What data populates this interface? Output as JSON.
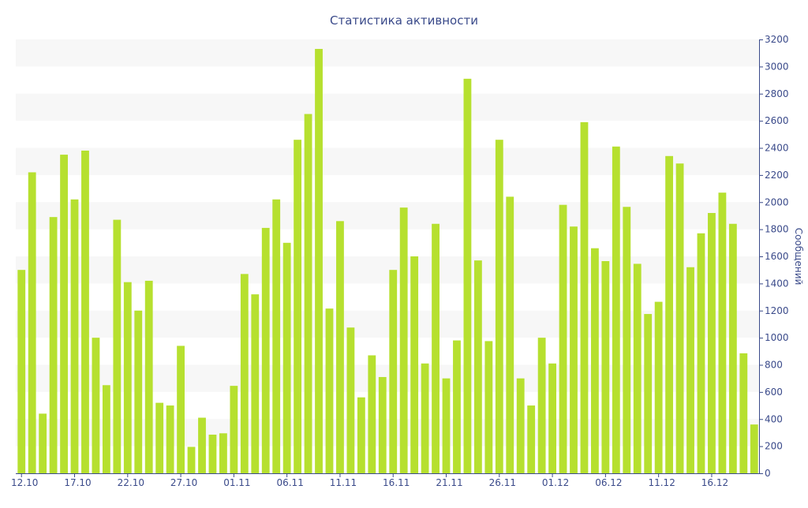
{
  "chart_data": {
    "type": "bar",
    "title": "Статистика активности",
    "xlabel": "",
    "ylabel": "Сообщений",
    "ylim": [
      0,
      3200
    ],
    "yticks": [
      0,
      200,
      400,
      600,
      800,
      1000,
      1200,
      1400,
      1600,
      1800,
      2000,
      2200,
      2400,
      2600,
      2800,
      3000,
      3200
    ],
    "xtick_labels": [
      {
        "index": 0,
        "label": "12.10"
      },
      {
        "index": 5,
        "label": "17.10"
      },
      {
        "index": 10,
        "label": "22.10"
      },
      {
        "index": 15,
        "label": "27.10"
      },
      {
        "index": 20,
        "label": "01.11"
      },
      {
        "index": 25,
        "label": "06.11"
      },
      {
        "index": 30,
        "label": "11.11"
      },
      {
        "index": 35,
        "label": "16.11"
      },
      {
        "index": 40,
        "label": "21.11"
      },
      {
        "index": 45,
        "label": "26.11"
      },
      {
        "index": 50,
        "label": "01.12"
      },
      {
        "index": 55,
        "label": "06.12"
      },
      {
        "index": 60,
        "label": "11.12"
      },
      {
        "index": 65,
        "label": "16.12"
      }
    ],
    "values": [
      1500,
      2220,
      440,
      1890,
      2350,
      2020,
      2380,
      1000,
      650,
      1870,
      1410,
      1200,
      1420,
      520,
      500,
      940,
      195,
      410,
      285,
      295,
      645,
      1470,
      1320,
      1810,
      2020,
      1700,
      2460,
      2650,
      3130,
      1215,
      1860,
      1075,
      560,
      870,
      710,
      1500,
      1960,
      1600,
      810,
      1840,
      700,
      980,
      2910,
      1570,
      975,
      2460,
      2040,
      700,
      500,
      1000,
      810,
      1980,
      1820,
      2590,
      1660,
      1565,
      2410,
      1965,
      1545,
      1175,
      1265,
      2340,
      2285,
      1520,
      1770,
      1920,
      2070,
      1840,
      885,
      360
    ],
    "colors": {
      "bar": "#b6e02f",
      "band": "#f7f7f7",
      "axis": "#3a4a8a",
      "title": "#3a4a8a"
    },
    "grid": "alternating-bands",
    "y_axis_side": "right"
  }
}
